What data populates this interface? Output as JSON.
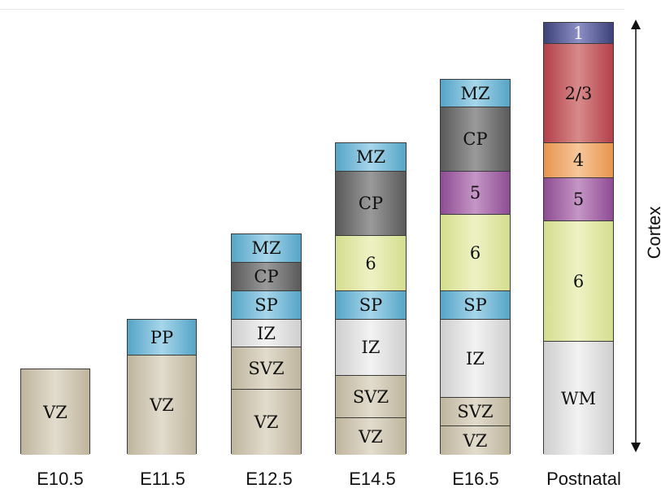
{
  "colors": {
    "vz": "#c9c1ad",
    "pp": "#5fb0d2",
    "mz": "#5fb0d2",
    "sp": "#5fb0d2",
    "cp": "#6e6e6e",
    "iz": "#dedede",
    "svz": "#c9c1ad",
    "l6": "#dfe7a3",
    "l5": "#a05aa3",
    "l4": "#f0a460",
    "l23": "#c0484f",
    "l1": "#4a4f8a",
    "wm": "#dcdcdc"
  },
  "columns": [
    {
      "stage": "E10.5",
      "layers": [
        {
          "label": "VZ",
          "key": "vz"
        }
      ]
    },
    {
      "stage": "E11.5",
      "layers": [
        {
          "label": "PP",
          "key": "pp"
        },
        {
          "label": "VZ",
          "key": "vz"
        }
      ]
    },
    {
      "stage": "E12.5",
      "layers": [
        {
          "label": "MZ",
          "key": "mz"
        },
        {
          "label": "CP",
          "key": "cp"
        },
        {
          "label": "SP",
          "key": "sp"
        },
        {
          "label": "IZ",
          "key": "iz"
        },
        {
          "label": "SVZ",
          "key": "svz"
        },
        {
          "label": "VZ",
          "key": "vz"
        }
      ]
    },
    {
      "stage": "E14.5",
      "layers": [
        {
          "label": "MZ",
          "key": "mz"
        },
        {
          "label": "CP",
          "key": "cp"
        },
        {
          "label": "6",
          "key": "l6"
        },
        {
          "label": "SP",
          "key": "sp"
        },
        {
          "label": "IZ",
          "key": "iz"
        },
        {
          "label": "SVZ",
          "key": "svz"
        },
        {
          "label": "VZ",
          "key": "vz"
        }
      ]
    },
    {
      "stage": "E16.5",
      "layers": [
        {
          "label": "MZ",
          "key": "mz"
        },
        {
          "label": "CP",
          "key": "cp"
        },
        {
          "label": "5",
          "key": "l5"
        },
        {
          "label": "6",
          "key": "l6"
        },
        {
          "label": "SP",
          "key": "sp"
        },
        {
          "label": "IZ",
          "key": "iz"
        },
        {
          "label": "SVZ",
          "key": "svz"
        },
        {
          "label": "VZ",
          "key": "vz"
        }
      ]
    },
    {
      "stage": "Postnatal",
      "layers": [
        {
          "label": "1",
          "key": "l1"
        },
        {
          "label": "2/3",
          "key": "l23"
        },
        {
          "label": "4",
          "key": "l4"
        },
        {
          "label": "5",
          "key": "l5"
        },
        {
          "label": "6",
          "key": "l6"
        },
        {
          "label": "WM",
          "key": "wm"
        }
      ]
    }
  ],
  "axis_label": "Cortex"
}
